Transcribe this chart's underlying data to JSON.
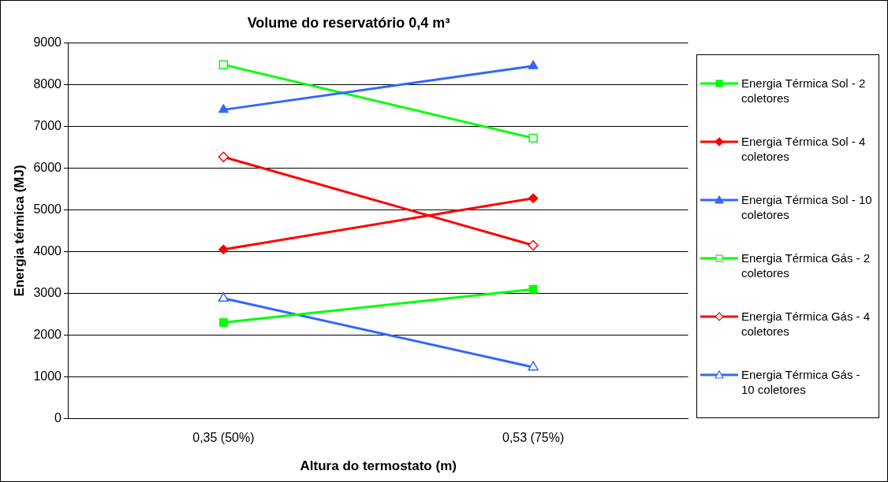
{
  "chart_data": {
    "type": "line",
    "title": "Volume do reservatório 0,4 m³",
    "xlabel": "Altura do termostato (m)",
    "ylabel": "Energia térmica (MJ)",
    "categories": [
      "0,35 (50%)",
      "0,53 (75%)"
    ],
    "ylim": [
      0,
      9000
    ],
    "yticks": [
      0,
      1000,
      2000,
      3000,
      4000,
      5000,
      6000,
      7000,
      8000,
      9000
    ],
    "grid": "y",
    "legend": "right",
    "line_style": "solid",
    "series": [
      {
        "name": "Energia Térmica Sol - 2 coletores",
        "color": "#00ff00",
        "marker": "square",
        "values": [
          2300,
          3100
        ]
      },
      {
        "name": "Energia Térmica Sol - 4 coletores",
        "color": "#ff0000",
        "marker": "diamond",
        "values": [
          4050,
          5280
        ]
      },
      {
        "name": "Energia Térmica Sol - 10 coletores",
        "color": "#3366ff",
        "marker": "triangle",
        "values": [
          7400,
          8450
        ]
      },
      {
        "name": "Energia Térmica Gás - 2 coletores",
        "color": "#00ff00",
        "marker": "square",
        "values": [
          8480,
          6720
        ]
      },
      {
        "name": "Energia Térmica Gás - 4 coletores",
        "color": "#ff0000",
        "marker": "diamond",
        "values": [
          6270,
          4150
        ]
      },
      {
        "name": "Energia Térmica Gás - 10 coletores",
        "color": "#3366ff",
        "marker": "triangle",
        "values": [
          2880,
          1230
        ]
      }
    ]
  }
}
